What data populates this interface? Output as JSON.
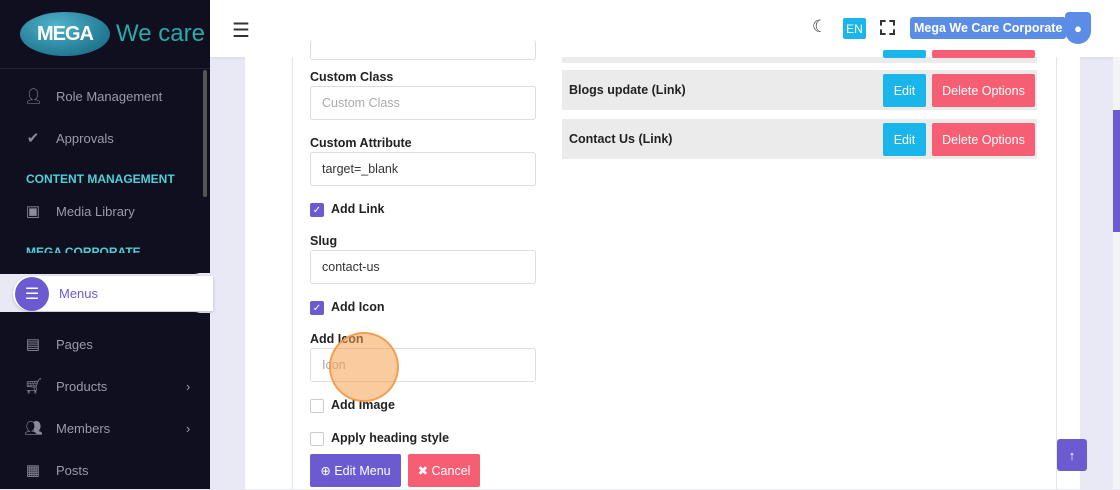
{
  "brand": {
    "logo_mark": "MEGA",
    "logo_text": "We care"
  },
  "sidebar": {
    "items": [
      {
        "label": "Role Management",
        "icon": "user-icon"
      },
      {
        "label": "Approvals",
        "icon": "check-icon"
      },
      {
        "label": "Media Library",
        "icon": "camera-icon"
      },
      {
        "label": "Menus",
        "icon": "menu-icon",
        "active": true
      },
      {
        "label": "Pages",
        "icon": "layout-icon"
      },
      {
        "label": "Products",
        "icon": "cart-icon"
      },
      {
        "label": "Members",
        "icon": "users-icon"
      },
      {
        "label": "Posts",
        "icon": "newspaper-icon"
      }
    ],
    "sections": [
      "CONTENT MANAGEMENT",
      "MEGA CORPORATE"
    ]
  },
  "header": {
    "lang": "EN",
    "account": "Mega We Care Corporate"
  },
  "form": {
    "custom_class_label": "Custom Class",
    "custom_class_placeholder": "Custom Class",
    "custom_attr_label": "Custom Attribute",
    "custom_attr_value": "target=_blank",
    "add_link_label": "Add Link",
    "add_link_checked": true,
    "slug_label": "Slug",
    "slug_value": "contact-us",
    "add_icon_check_label": "Add Icon",
    "add_icon_checked": true,
    "add_icon_label": "Add Icon",
    "icon_placeholder": "Icon",
    "add_image_label": "Add Image",
    "add_image_checked": false,
    "heading_style_label": "Apply heading style",
    "heading_style_checked": false,
    "edit_menu": "Edit Menu",
    "cancel": "Cancel"
  },
  "menu_list": [
    {
      "name": "Blogs update (Link)",
      "edit": "Edit",
      "delete": "Delete Options"
    },
    {
      "name": "Contact Us (Link)",
      "edit": "Edit",
      "delete": "Delete Options"
    }
  ],
  "colors": {
    "accent": "#6c5bd0",
    "edit": "#1ab5ea",
    "delete": "#f65e74",
    "sidebar": "#0f0f1f",
    "section": "#4fd0d8"
  }
}
